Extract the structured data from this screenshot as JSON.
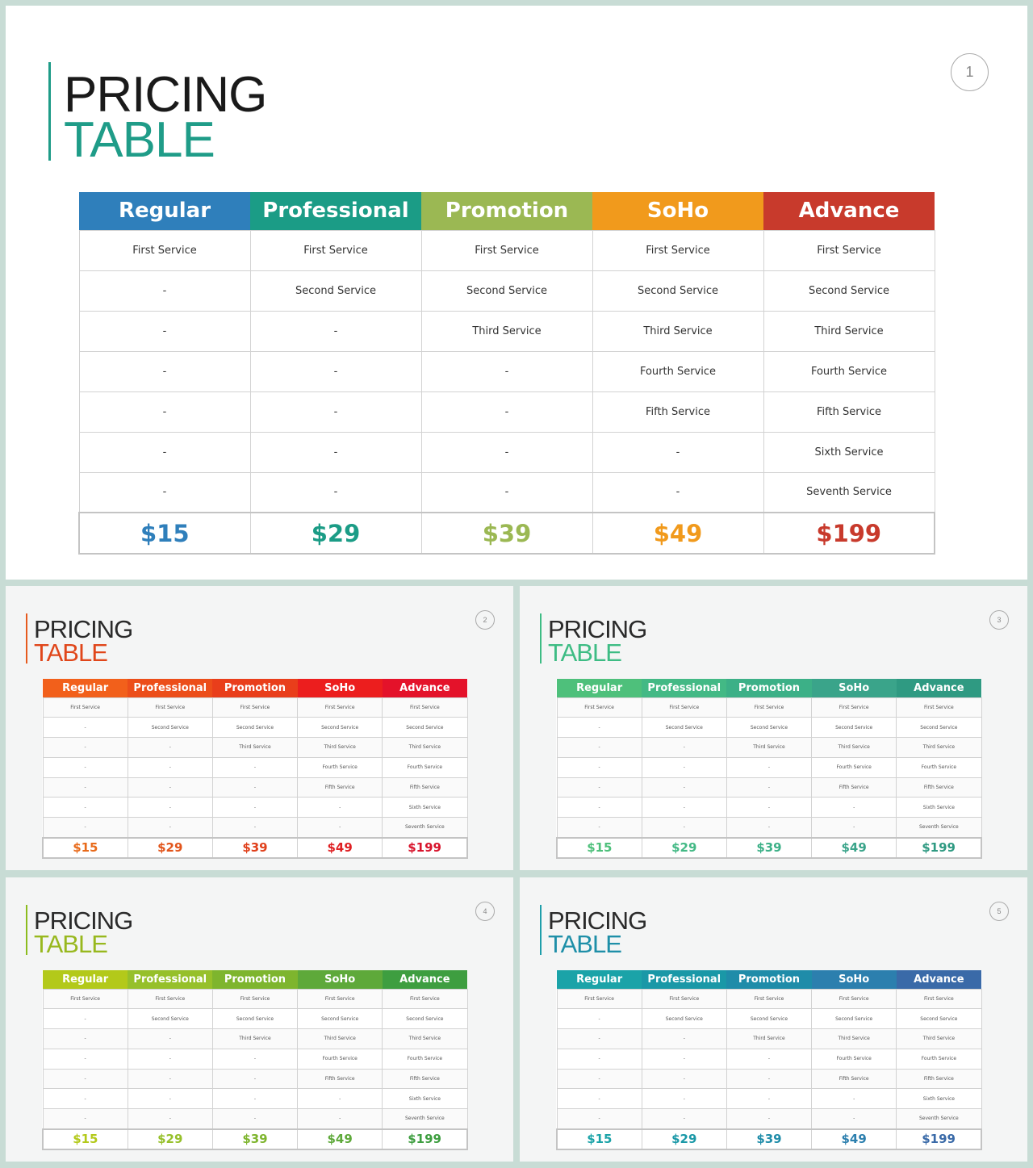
{
  "title_line1": "PRICING",
  "title_line2": "TABLE",
  "plans": [
    "Regular",
    "Professional",
    "Promotion",
    "SoHo",
    "Advance"
  ],
  "prices": [
    "$15",
    "$29",
    "$39",
    "$49",
    "$199"
  ],
  "rows": [
    [
      "First Service",
      "First Service",
      "First Service",
      "First Service",
      "First Service"
    ],
    [
      "-",
      "Second Service",
      "Second Service",
      "Second Service",
      "Second Service"
    ],
    [
      "-",
      "-",
      "Third Service",
      "Third Service",
      "Third Service"
    ],
    [
      "-",
      "-",
      "-",
      "Fourth Service",
      "Fourth Service"
    ],
    [
      "-",
      "-",
      "-",
      "Fifth Service",
      "Fifth Service"
    ],
    [
      "-",
      "-",
      "-",
      "-",
      "Sixth Service"
    ],
    [
      "-",
      "-",
      "-",
      "-",
      "Seventh Service"
    ]
  ],
  "slides": [
    {
      "page": "1",
      "accent": "#1f9c88",
      "title_color": "#1f9c88",
      "header_colors": [
        "#2f7fbb",
        "#1b9c86",
        "#9bb853",
        "#f19a1c",
        "#c83a2c"
      ],
      "price_colors": [
        "#2f7fbb",
        "#1b9c86",
        "#9bb853",
        "#f19a1c",
        "#c83a2c"
      ]
    },
    {
      "page": "2",
      "accent": "#e65a1e",
      "title_color": "#e0461a",
      "header_colors": [
        "#f2601b",
        "#ec4e1a",
        "#e93e1b",
        "#ec1e1e",
        "#e4122a"
      ],
      "price_colors": [
        "#e86a1a",
        "#e2541a",
        "#e0401b",
        "#df1f22",
        "#d8142c"
      ]
    },
    {
      "page": "3",
      "accent": "#3dbc84",
      "title_color": "#3dbc84",
      "header_colors": [
        "#4ec07b",
        "#43b985",
        "#3cb087",
        "#3aa48a",
        "#2f9a82"
      ],
      "price_colors": [
        "#4ec07b",
        "#43b985",
        "#3cb087",
        "#3aa48a",
        "#2f9a82"
      ]
    },
    {
      "page": "4",
      "accent": "#8cbc1e",
      "title_color": "#98b81e",
      "header_colors": [
        "#b3c91a",
        "#96c02a",
        "#7eb52e",
        "#5ea93a",
        "#3e9e40"
      ],
      "price_colors": [
        "#b3c91a",
        "#96c02a",
        "#7eb52e",
        "#5ea93a",
        "#3e9e40"
      ]
    },
    {
      "page": "5",
      "accent": "#1e9eaa",
      "title_color": "#1e8fa8",
      "header_colors": [
        "#1ba3a8",
        "#1a98a7",
        "#1f8ca9",
        "#2c7fae",
        "#3a6aa8"
      ],
      "price_colors": [
        "#1ba3a8",
        "#1a98a7",
        "#1f8ca9",
        "#2c7fae",
        "#3a6aa8"
      ]
    }
  ]
}
